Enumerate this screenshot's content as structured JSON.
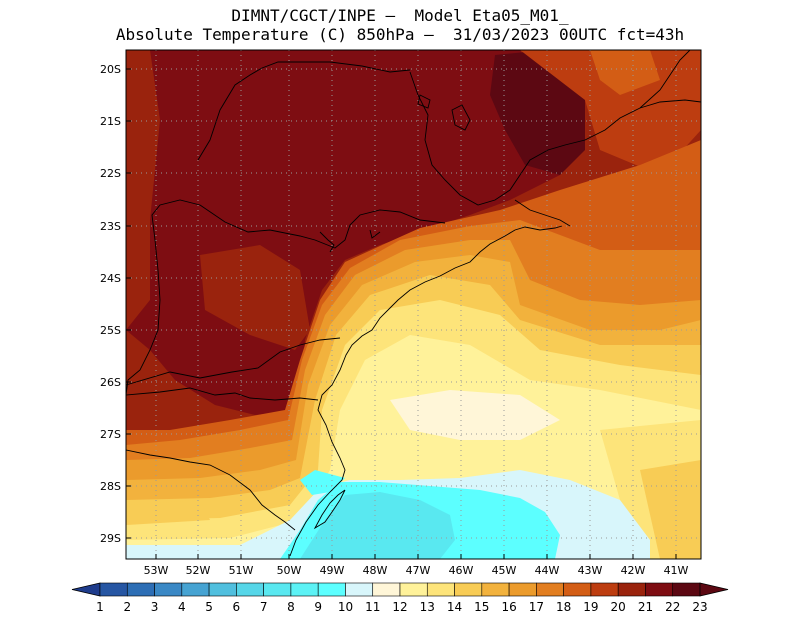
{
  "header": {
    "line1": "DIMNT/CGCT/INPE —  Model Eta05_M01_",
    "line2": "Absolute Temperature (C) 850hPa —  31/03/2023 00UTC fct=43h"
  },
  "map": {
    "lat_labels": [
      "20S",
      "21S",
      "22S",
      "23S",
      "24S",
      "25S",
      "26S",
      "27S",
      "28S",
      "29S"
    ],
    "lon_labels": [
      "53W",
      "52W",
      "51W",
      "50W",
      "49W",
      "48W",
      "47W",
      "46W",
      "45W",
      "44W",
      "43W",
      "42W",
      "41W"
    ],
    "region": "Southern / Southeastern Brazil",
    "max_temp_area": "inland (~23C)",
    "min_temp_area": "Rio Grande do Sul coast (~10-11C)"
  },
  "colorbar": {
    "ticks": [
      "1",
      "2",
      "3",
      "4",
      "5",
      "6",
      "7",
      "8",
      "9",
      "10",
      "11",
      "12",
      "13",
      "14",
      "15",
      "16",
      "17",
      "18",
      "19",
      "20",
      "21",
      "22",
      "23"
    ],
    "colors": [
      "#1e3c8c",
      "#2656a3",
      "#2d6eb5",
      "#3a88c5",
      "#46a3d2",
      "#50bfde",
      "#56d6e8",
      "#59e8f0",
      "#5cf2f5",
      "#5cffff",
      "#d8f6fb",
      "#fff6d8",
      "#fff29a",
      "#fde47a",
      "#f8cc55",
      "#f2b23d",
      "#eb9b2c",
      "#e27e20",
      "#d35d15",
      "#bd3d10",
      "#9a230d",
      "#7e0d12",
      "#5c0812"
    ]
  }
}
